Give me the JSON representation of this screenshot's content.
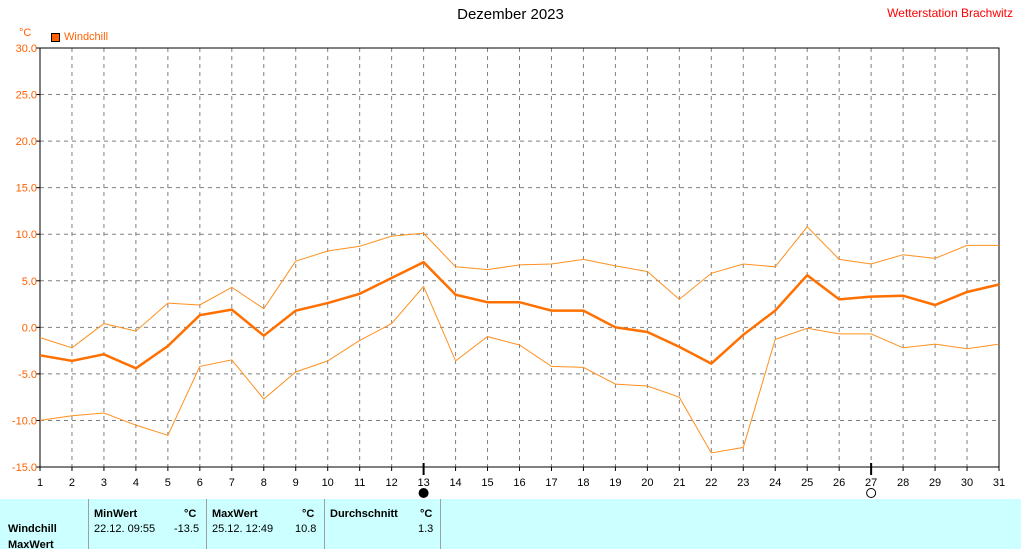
{
  "header": {
    "title": "Dezember 2023",
    "station": "Wetterstation Brachwitz",
    "unit": "°C",
    "legend_label": "Windchill"
  },
  "chart_data": {
    "type": "line",
    "title": "Dezember 2023",
    "ylabel": "°C",
    "xlabel": "",
    "ylim": [
      -15,
      30
    ],
    "xlim": [
      1,
      31
    ],
    "grid": true,
    "legend": "top-left",
    "yticks": [
      "30.0",
      "25.0",
      "20.0",
      "15.0",
      "10.0",
      "5.0",
      "0.0",
      "-5.0",
      "-10.0",
      "-15.0"
    ],
    "x": [
      1,
      2,
      3,
      4,
      5,
      6,
      7,
      8,
      9,
      10,
      11,
      12,
      13,
      14,
      15,
      16,
      17,
      18,
      19,
      20,
      21,
      22,
      23,
      24,
      25,
      26,
      27,
      28,
      29,
      30,
      31
    ],
    "series": [
      {
        "name": "Windchill",
        "role": "mean",
        "color": "#ff7000",
        "values": [
          -3.0,
          -3.6,
          -2.9,
          -4.4,
          -2.0,
          1.3,
          1.9,
          -0.9,
          1.8,
          2.6,
          3.6,
          5.3,
          7.0,
          3.5,
          2.7,
          2.7,
          1.8,
          1.8,
          0.0,
          -0.5,
          -2.1,
          -3.9,
          -0.8,
          1.8,
          5.6,
          3.0,
          3.3,
          3.4,
          2.4,
          3.8,
          4.6
        ]
      },
      {
        "role": "max",
        "color": "#ff9020",
        "values": [
          -1.1,
          -2.2,
          0.4,
          -0.4,
          2.6,
          2.4,
          4.3,
          2.0,
          7.1,
          8.2,
          8.7,
          9.8,
          10.1,
          6.5,
          6.2,
          6.7,
          6.8,
          7.3,
          6.6,
          6.0,
          3.0,
          5.8,
          6.8,
          6.5,
          10.8,
          7.3,
          6.8,
          7.8,
          7.4,
          8.8,
          8.8
        ]
      },
      {
        "role": "min",
        "color": "#ff9020",
        "values": [
          -10.0,
          -9.5,
          -9.2,
          -10.5,
          -11.6,
          -4.2,
          -3.5,
          -7.7,
          -4.8,
          -3.6,
          -1.4,
          0.4,
          4.4,
          -3.6,
          -1.0,
          -1.9,
          -4.2,
          -4.3,
          -6.1,
          -6.3,
          -7.5,
          -13.5,
          -12.9,
          -1.3,
          -0.1,
          -0.7,
          -0.7,
          -2.2,
          -1.8,
          -2.3,
          -1.8
        ]
      }
    ],
    "markers": [
      {
        "day": 13,
        "symbol": "full-moon",
        "label": ""
      },
      {
        "day": 27,
        "symbol": "new-moon",
        "label": ""
      }
    ]
  },
  "colors": {
    "series": "#ff7000",
    "minmax": "#ff9020",
    "grid": "#808080",
    "panel_bg": "#ccffff",
    "station": "#ff0000"
  },
  "stats": {
    "row_label": "Windchill",
    "row2_label": "MaxWert",
    "min_header": "MinWert",
    "max_header": "MaxWert",
    "avg_header": "Durchschnitt",
    "unit": "°C",
    "min_time": "22.12.  09:55",
    "min_value": "-13.5",
    "max_time": "25.12.  12:49",
    "max_value": "10.8",
    "avg_value": "1.3"
  }
}
